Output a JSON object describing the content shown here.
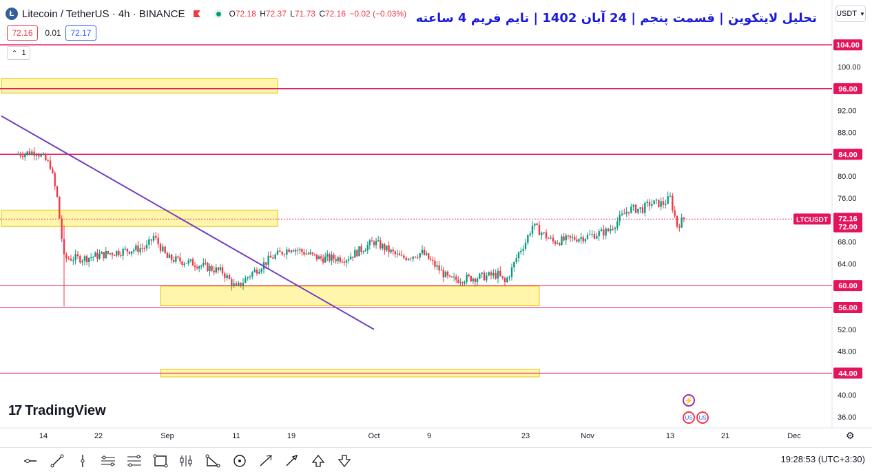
{
  "header": {
    "coin_glyph": "Ł",
    "symbol_line": "Litecoin / TetherUS · 4h · BINANCE",
    "open_label": "O",
    "open_value": "72.18",
    "high_label": "H",
    "high_value": "72.37",
    "low_label": "L",
    "low_value": "71.73",
    "close_label": "C",
    "close_value": "72.16",
    "change_value": "−0.02 (−0.03%)"
  },
  "trade": {
    "sell_price": "72.16",
    "spread": "0.01",
    "buy_price": "72.17"
  },
  "indicators_toggle": "1",
  "title": "تحلیل لایتکوین | قسمت پنجم | 24 آبان 1402 | تایم فریم 4 ساعته",
  "currency": "USDT",
  "brand": {
    "logo_mark": "17",
    "name": "TradingView"
  },
  "colors": {
    "level_line": "#e4145c",
    "zone_fill": "#fff59d",
    "zone_border": "#e6c200",
    "trendline": "#6f3fc4",
    "candle_up": "#089981",
    "candle_down": "#f23645",
    "title": "#1a1adc"
  },
  "clock": {
    "time": "19:28:53",
    "timezone": "(UTC+3:30)"
  },
  "events": {
    "bolt_icon": "⚡",
    "flag_icon": "US"
  },
  "toolbar_icons": [
    "horizontal-ray-icon",
    "trend-line-icon",
    "vertical-line-icon",
    "parallel-channel-icon",
    "fib-retracement-icon",
    "rectangle-icon",
    "long-position-icon",
    "xabcd-pattern-icon",
    "circle-icon",
    "arrow-marker-icon",
    "arrow-icon",
    "arrow-up-icon",
    "arrow-down-icon"
  ],
  "chart_data": {
    "type": "candlestick",
    "symbol": "LTCUSDT",
    "timeframe": "4h",
    "ylim": [
      34,
      106
    ],
    "y_ticks": [
      "36.00",
      "40.00",
      "44.00",
      "48.00",
      "52.00",
      "56.00",
      "60.00",
      "64.00",
      "68.00",
      "72.00",
      "76.00",
      "80.00",
      "84.00",
      "88.00",
      "92.00",
      "96.00",
      "100.00",
      "104.00"
    ],
    "x_ticks": [
      "14",
      "22",
      "Sep",
      "11",
      "19",
      "Oct",
      "9",
      "23",
      "Nov",
      "13",
      "21",
      "Dec"
    ],
    "last_price": 72.16,
    "last_price_label": "LTCUSDT",
    "horizontal_levels": [
      104,
      96,
      84,
      72,
      60,
      56,
      44
    ],
    "level_labels": [
      "104.00",
      "96.00",
      "84.00",
      "72.16",
      "72.00",
      "60.00",
      "56.00",
      "44.00"
    ],
    "zones": [
      {
        "from": "Aug 10",
        "to": "Sep 17",
        "low": 95.2,
        "high": 97.8
      },
      {
        "from": "Aug 10",
        "to": "Sep 17",
        "low": 70.8,
        "high": 73.8
      },
      {
        "from": "Aug 31",
        "to": "Oct 25",
        "low": 56.3,
        "high": 59.9
      },
      {
        "from": "Aug 31",
        "to": "Oct 25",
        "low": 43.3,
        "high": 44.7
      }
    ],
    "trendline": {
      "from": {
        "date": "Aug 10",
        "price": 91
      },
      "to": {
        "date": "Oct 1",
        "price": 52
      }
    },
    "candles_summary": [
      {
        "date": "Aug 10",
        "price": 84
      },
      {
        "date": "Aug 13",
        "price": 84.5
      },
      {
        "date": "Aug 15",
        "price": 82
      },
      {
        "date": "Aug 16",
        "price": 76
      },
      {
        "date": "Aug 17",
        "price": 65
      },
      {
        "date": "Aug 20",
        "price": 65
      },
      {
        "date": "Aug 24",
        "price": 66
      },
      {
        "date": "Aug 29",
        "price": 67
      },
      {
        "date": "Aug 30",
        "price": 69
      },
      {
        "date": "Sep 1",
        "price": 65
      },
      {
        "date": "Sep 5",
        "price": 64
      },
      {
        "date": "Sep 9",
        "price": 62.5
      },
      {
        "date": "Sep 11",
        "price": 59.5
      },
      {
        "date": "Sep 13",
        "price": 62
      },
      {
        "date": "Sep 16",
        "price": 65
      },
      {
        "date": "Sep 19",
        "price": 67
      },
      {
        "date": "Sep 23",
        "price": 65
      },
      {
        "date": "Sep 27",
        "price": 65
      },
      {
        "date": "Oct 1",
        "price": 68
      },
      {
        "date": "Oct 5",
        "price": 65
      },
      {
        "date": "Oct 8",
        "price": 66
      },
      {
        "date": "Oct 12",
        "price": 61
      },
      {
        "date": "Oct 16",
        "price": 61.5
      },
      {
        "date": "Oct 19",
        "price": 62
      },
      {
        "date": "Oct 20",
        "price": 60.5
      },
      {
        "date": "Oct 21",
        "price": 63
      },
      {
        "date": "Oct 22",
        "price": 66
      },
      {
        "date": "Oct 23",
        "price": 68
      },
      {
        "date": "Oct 24",
        "price": 71
      },
      {
        "date": "Oct 27",
        "price": 68
      },
      {
        "date": "Nov 1",
        "price": 69
      },
      {
        "date": "Nov 4",
        "price": 70
      },
      {
        "date": "Nov 7",
        "price": 74
      },
      {
        "date": "Nov 9",
        "price": 74
      },
      {
        "date": "Nov 10",
        "price": 75
      },
      {
        "date": "Nov 12",
        "price": 75
      },
      {
        "date": "Nov 13",
        "price": 76
      },
      {
        "date": "Nov 14",
        "price": 71
      },
      {
        "date": "Nov 15",
        "price": 72.16
      }
    ]
  }
}
